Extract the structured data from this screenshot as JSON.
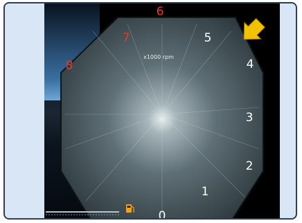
{
  "tachometer": {
    "unit_label": "x1000 rpm",
    "rpm_marks": [
      "0",
      "1",
      "2",
      "3",
      "4",
      "5",
      "6",
      "7",
      "8"
    ],
    "redline_marks": [
      "6",
      "7",
      "8"
    ],
    "colors": {
      "frame_border": "#2c3e50",
      "frame_background": "#d9e6f6",
      "numerals_normal": "#ffffff",
      "numerals_redline": "#e03c2c",
      "pointer_arrow": "#f2c200",
      "fuel_icon": "#f0a21a"
    },
    "icons": [
      "pointer-arrow-icon",
      "fuel-pump-icon"
    ]
  }
}
